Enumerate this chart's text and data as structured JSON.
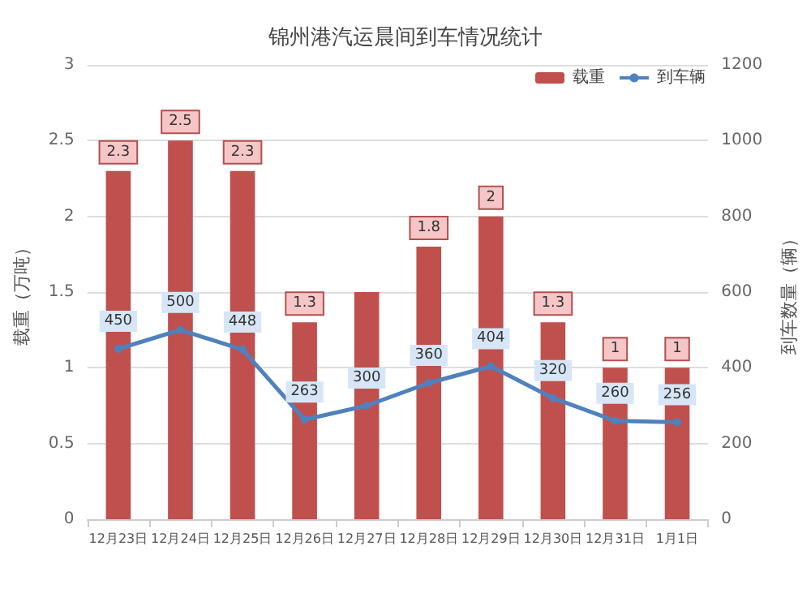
{
  "chart_data": {
    "type": "bar",
    "title": "锦州港汽运晨间到车情况统计",
    "ylabel": "载重（万吨）",
    "y2label": "到车数量（辆）",
    "categories": [
      "12月23日",
      "12月24日",
      "12月25日",
      "12月26日",
      "12月27日",
      "12月28日",
      "12月29日",
      "12月30日",
      "12月31日",
      "1月1日"
    ],
    "series": [
      {
        "name": "载重",
        "color": "#c0504d",
        "values": [
          2.3,
          2.5,
          2.3,
          1.3,
          1.5,
          1.8,
          2,
          1.3,
          1,
          1
        ],
        "value_labels": [
          "2.3",
          "2.5",
          "2.3",
          "1.3",
          null,
          "1.8",
          "2",
          "1.3",
          "1",
          "1"
        ]
      },
      {
        "name": "到车辆",
        "type": "line",
        "axis": "y2",
        "color": "#4f81bd",
        "marker": "circle",
        "values": [
          450,
          500,
          448,
          263,
          300,
          360,
          404,
          320,
          260,
          256
        ],
        "value_labels": [
          "450",
          "500",
          "448",
          "263",
          "300",
          "360",
          "404",
          "320",
          "260",
          "256"
        ]
      }
    ],
    "ylim": [
      0,
      3
    ],
    "yticks": [
      0,
      0.5,
      1,
      1.5,
      2,
      2.5,
      3
    ],
    "y2lim": [
      0,
      1200
    ],
    "y2ticks": [
      0,
      200,
      400,
      600,
      800,
      1000,
      1200
    ],
    "grid": "y",
    "legend": "top right"
  }
}
